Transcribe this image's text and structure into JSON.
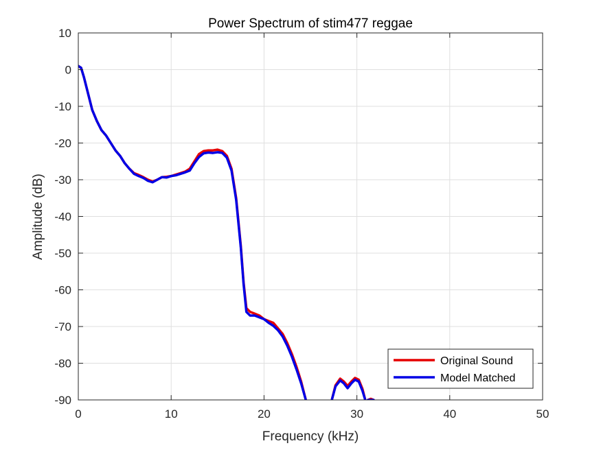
{
  "chart_data": {
    "type": "line",
    "title": "Power Spectrum of stim477 reggae",
    "xlabel": "Frequency (kHz)",
    "ylabel": "Amplitude (dB)",
    "xlim": [
      0,
      50
    ],
    "ylim": [
      -90,
      10
    ],
    "xticks": [
      0,
      10,
      20,
      30,
      40,
      50
    ],
    "yticks": [
      10,
      0,
      -10,
      -20,
      -30,
      -40,
      -50,
      -60,
      -70,
      -80,
      -90
    ],
    "grid": true,
    "legend_position": "bottom-right",
    "series": [
      {
        "name": "Original Sound",
        "color": "#e50000",
        "segments": [
          [
            [
              0,
              1
            ],
            [
              0.3,
              0.5
            ],
            [
              0.6,
              -2
            ],
            [
              1,
              -6
            ],
            [
              1.5,
              -11
            ],
            [
              2,
              -14
            ],
            [
              2.5,
              -16.5
            ],
            [
              3,
              -18
            ],
            [
              3.5,
              -20
            ],
            [
              4,
              -22
            ],
            [
              4.5,
              -23.5
            ],
            [
              5,
              -25.5
            ],
            [
              5.5,
              -27
            ],
            [
              6,
              -28.2
            ],
            [
              6.5,
              -28.7
            ],
            [
              7,
              -29.3
            ],
            [
              7.5,
              -30
            ],
            [
              8,
              -30.5
            ],
            [
              8.5,
              -30
            ],
            [
              9,
              -29.3
            ],
            [
              9.5,
              -29.2
            ],
            [
              10,
              -29
            ],
            [
              10.5,
              -28.6
            ],
            [
              11,
              -28.2
            ],
            [
              11.5,
              -27.8
            ],
            [
              12,
              -27
            ],
            [
              12.5,
              -25
            ],
            [
              13,
              -23
            ],
            [
              13.5,
              -22.2
            ],
            [
              14,
              -22
            ],
            [
              14.5,
              -22
            ],
            [
              15,
              -21.8
            ],
            [
              15.5,
              -22.2
            ],
            [
              16,
              -23.5
            ],
            [
              16.5,
              -27
            ],
            [
              17,
              -35
            ],
            [
              17.5,
              -48
            ],
            [
              17.8,
              -58
            ],
            [
              18.1,
              -65
            ],
            [
              18.5,
              -66
            ],
            [
              19,
              -66.5
            ],
            [
              19.5,
              -67
            ],
            [
              20,
              -68
            ],
            [
              20.5,
              -68.5
            ],
            [
              21,
              -69
            ],
            [
              21.5,
              -70.5
            ],
            [
              22,
              -72
            ],
            [
              22.5,
              -74.5
            ],
            [
              23,
              -77.5
            ],
            [
              23.5,
              -81
            ],
            [
              24,
              -85
            ],
            [
              24.5,
              -90
            ]
          ],
          [
            [
              27.3,
              -90
            ],
            [
              27.7,
              -86
            ],
            [
              28.2,
              -84.2
            ],
            [
              28.6,
              -85
            ],
            [
              29,
              -86.2
            ],
            [
              29.4,
              -85
            ],
            [
              29.8,
              -84
            ],
            [
              30.2,
              -84.5
            ],
            [
              30.6,
              -87
            ],
            [
              30.9,
              -90
            ]
          ],
          [
            [
              31.2,
              -90
            ],
            [
              31.5,
              -89.7
            ],
            [
              31.8,
              -90
            ]
          ]
        ]
      },
      {
        "name": "Model Matched",
        "color": "#0000e5",
        "segments": [
          [
            [
              0,
              1
            ],
            [
              0.3,
              0.5
            ],
            [
              0.6,
              -2
            ],
            [
              1,
              -6
            ],
            [
              1.5,
              -11
            ],
            [
              2,
              -14
            ],
            [
              2.5,
              -16.5
            ],
            [
              3,
              -18
            ],
            [
              3.5,
              -20
            ],
            [
              4,
              -22
            ],
            [
              4.5,
              -23.5
            ],
            [
              5,
              -25.5
            ],
            [
              5.5,
              -27
            ],
            [
              6,
              -28.4
            ],
            [
              6.5,
              -29
            ],
            [
              7,
              -29.5
            ],
            [
              7.5,
              -30.3
            ],
            [
              8,
              -30.7
            ],
            [
              8.5,
              -30
            ],
            [
              9,
              -29.3
            ],
            [
              9.5,
              -29.4
            ],
            [
              10,
              -29
            ],
            [
              10.5,
              -28.8
            ],
            [
              11,
              -28.4
            ],
            [
              11.5,
              -28
            ],
            [
              12,
              -27.5
            ],
            [
              12.5,
              -25.5
            ],
            [
              13,
              -23.8
            ],
            [
              13.5,
              -22.8
            ],
            [
              14,
              -22.6
            ],
            [
              14.5,
              -22.7
            ],
            [
              15,
              -22.5
            ],
            [
              15.5,
              -22.7
            ],
            [
              16,
              -24
            ],
            [
              16.5,
              -27.5
            ],
            [
              17,
              -35.5
            ],
            [
              17.5,
              -48.5
            ],
            [
              17.8,
              -58.5
            ],
            [
              18.1,
              -66
            ],
            [
              18.5,
              -67
            ],
            [
              19,
              -67
            ],
            [
              19.5,
              -67.5
            ],
            [
              20,
              -68
            ],
            [
              20.5,
              -69
            ],
            [
              21,
              -69.8
            ],
            [
              21.5,
              -71
            ],
            [
              22,
              -72.7
            ],
            [
              22.5,
              -75.2
            ],
            [
              23,
              -78.2
            ],
            [
              23.5,
              -81.7
            ],
            [
              24,
              -85.5
            ],
            [
              24.5,
              -90
            ]
          ],
          [
            [
              27.3,
              -90
            ],
            [
              27.7,
              -86.3
            ],
            [
              28.2,
              -84.7
            ],
            [
              28.6,
              -85.5
            ],
            [
              29,
              -86.8
            ],
            [
              29.4,
              -85.5
            ],
            [
              29.8,
              -84.5
            ],
            [
              30.2,
              -85
            ],
            [
              30.6,
              -87.5
            ],
            [
              30.9,
              -90
            ]
          ],
          [
            [
              31.2,
              -90
            ],
            [
              31.5,
              -90
            ],
            [
              31.8,
              -90
            ]
          ]
        ]
      }
    ]
  }
}
